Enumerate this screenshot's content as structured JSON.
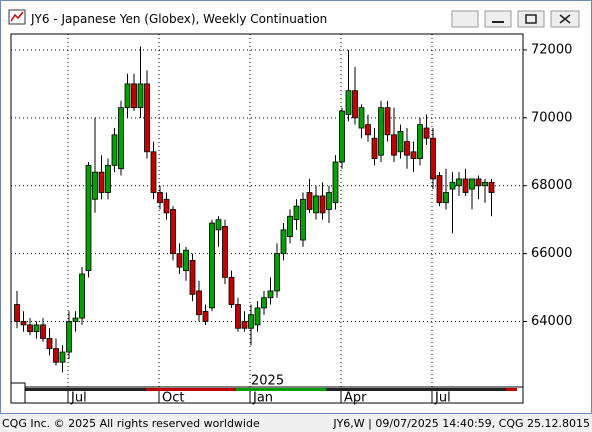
{
  "window_title": "JY6 - Japanese Yen (Globex), Weekly Continuation",
  "status_left": "CQG Inc. © 2025 All rights reserved worldwide",
  "status_right": "JY6,W | 09/07/2025 14:40:59, CQG 25.12.8015",
  "chart_data": {
    "type": "candlestick",
    "categories": [
      null,
      null,
      null,
      null,
      null,
      null,
      null,
      null,
      "Jul",
      null,
      null,
      null,
      null,
      null,
      null,
      null,
      null,
      null,
      null,
      null,
      null,
      null,
      "Oct",
      null,
      null,
      null,
      null,
      null,
      null,
      null,
      null,
      null,
      null,
      null,
      null,
      null,
      "Jan",
      null,
      null,
      null,
      null,
      null,
      null,
      null,
      null,
      null,
      null,
      null,
      null,
      null,
      "Apr",
      null,
      null,
      null,
      null,
      null,
      null,
      null,
      null,
      null,
      null,
      null,
      null,
      null,
      "Jul",
      null,
      null,
      null,
      null,
      null,
      null,
      null,
      null,
      null
    ],
    "year_label": "2025",
    "open": [
      64500,
      64000,
      63900,
      63700,
      63900,
      63500,
      63200,
      62800,
      63100,
      64000,
      64100,
      65500,
      67600,
      68400,
      67800,
      68600,
      68500,
      70300,
      71000,
      70300,
      71000,
      69000,
      67800,
      67600,
      67300,
      66000,
      65500,
      65800,
      64900,
      64300,
      64400,
      66700,
      66800,
      65300,
      64500,
      64000,
      63800,
      63900,
      64400,
      64700,
      64900,
      66000,
      66500,
      67000,
      66400,
      67800,
      67200,
      67700,
      67300,
      67500,
      68700,
      70100,
      70800,
      69700,
      69800,
      69400,
      68900,
      70300,
      69500,
      69000,
      69300,
      69000,
      68800,
      69700,
      69400,
      68300,
      67500,
      67900,
      68000,
      68200,
      67900,
      68200,
      68000,
      68100
    ],
    "high": [
      64900,
      64300,
      64100,
      64000,
      64100,
      63800,
      63500,
      63300,
      64300,
      64300,
      65600,
      68700,
      70000,
      68900,
      68800,
      69700,
      70500,
      71300,
      71300,
      72100,
      71400,
      69300,
      68000,
      67800,
      67400,
      66300,
      66200,
      66000,
      65200,
      64500,
      67000,
      67100,
      67000,
      65500,
      64700,
      64300,
      64500,
      64600,
      64900,
      65300,
      66300,
      66900,
      67300,
      67600,
      67800,
      68200,
      68000,
      68100,
      68000,
      68900,
      70300,
      72000,
      71500,
      70400,
      70100,
      69700,
      70500,
      70500,
      70300,
      69800,
      69700,
      69300,
      70000,
      70100,
      69700,
      68400,
      68500,
      68400,
      68400,
      68500,
      68200,
      68300,
      68200,
      68200
    ],
    "low": [
      63800,
      63700,
      63600,
      63500,
      63400,
      63000,
      62700,
      62500,
      62900,
      63700,
      63900,
      65300,
      67200,
      67600,
      67600,
      68400,
      68300,
      70000,
      70200,
      70000,
      68800,
      67600,
      67300,
      67000,
      65800,
      65400,
      65200,
      64600,
      64000,
      63900,
      64300,
      66200,
      65100,
      64400,
      63700,
      63700,
      63300,
      63700,
      64200,
      64500,
      64700,
      65800,
      66300,
      66700,
      66200,
      67200,
      67000,
      67000,
      66900,
      67300,
      68500,
      69900,
      69800,
      69400,
      69300,
      68600,
      68700,
      69300,
      68700,
      68800,
      68500,
      68400,
      68600,
      69200,
      67900,
      67400,
      67300,
      66600,
      67700,
      67700,
      67300,
      67600,
      67500,
      67100
    ],
    "close": [
      64000,
      63900,
      63700,
      63900,
      63500,
      63200,
      62800,
      63100,
      64000,
      64100,
      65400,
      68600,
      68400,
      67800,
      68600,
      69500,
      70300,
      71000,
      70300,
      71000,
      69000,
      67800,
      67500,
      67200,
      66000,
      65600,
      66100,
      64800,
      64200,
      64000,
      66900,
      67000,
      65300,
      64500,
      63800,
      63800,
      64200,
      64400,
      64700,
      64900,
      66000,
      66700,
      67100,
      67400,
      67600,
      67300,
      67700,
      67200,
      67800,
      68700,
      70200,
      70800,
      70000,
      70300,
      69500,
      68800,
      70300,
      69500,
      68900,
      69600,
      68900,
      68800,
      69800,
      69400,
      68200,
      67500,
      67800,
      68100,
      68200,
      67800,
      68200,
      68000,
      68100,
      67800
    ],
    "up_color": "#00a000",
    "down_color": "#c00000",
    "ylim": [
      62070,
      72470
    ],
    "yticks": [
      64000,
      66000,
      68000,
      70000,
      72000
    ],
    "grid": true,
    "y_axis_side": "right"
  }
}
